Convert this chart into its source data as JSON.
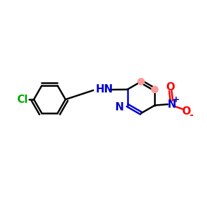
{
  "bg_color": "#ffffff",
  "bond_color": "#000000",
  "N_color": "#0000cc",
  "O_color": "#ff0000",
  "Cl_color": "#00aa00",
  "aromatic_color": "#ff9999",
  "bond_width": 1.8,
  "figsize": [
    3.0,
    3.0
  ],
  "dpi": 100,
  "xlim": [
    0,
    10
  ],
  "ylim": [
    0,
    10
  ],
  "font_size": 11
}
